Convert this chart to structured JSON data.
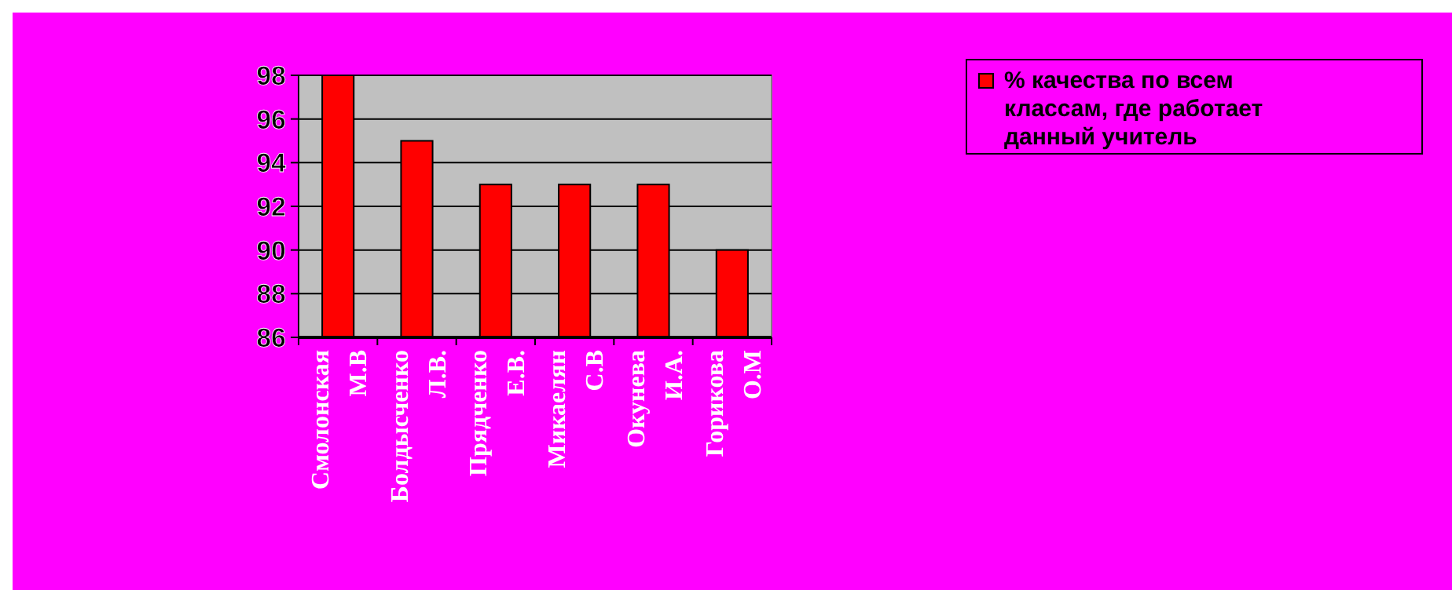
{
  "chart_data": {
    "type": "bar",
    "categories": [
      "Смолонская М.В",
      "Болдысченко Л.В.",
      "Прядченко Е.В.",
      "Микаелян С.В",
      "Окунева И.А.",
      "Горикова О.М"
    ],
    "series": [
      {
        "name": "% качества по всем классам, где работает данный учитель",
        "color": "#ff0000",
        "values": [
          98,
          95,
          93,
          93,
          93,
          90
        ]
      }
    ],
    "ylim": [
      86,
      98
    ],
    "yticks": [
      86,
      88,
      90,
      92,
      94,
      96,
      98
    ],
    "grid": "y",
    "legend": "top right"
  }
}
